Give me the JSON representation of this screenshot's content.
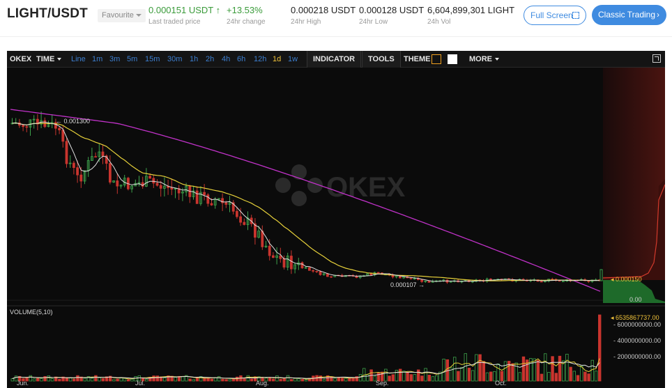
{
  "header": {
    "pair": "LIGHT/USDT",
    "favourite_label": "Favourite",
    "last_price": "0.000151 USDT",
    "last_price_arrow": "↑",
    "last_price_label": "Last traded price",
    "change": "+13.53%",
    "change_label": "24hr change",
    "high": "0.000218 USDT",
    "high_label": "24hr High",
    "low": "0.000128 USDT",
    "low_label": "24hr Low",
    "vol": "6,604,899,301 LIGHT",
    "vol_label": "24h Vol",
    "full_screen_label": "Full Screen",
    "classic_label": "Classic Trading",
    "classic_icon": "chevron-right-icon",
    "full_screen_icon": "expand-dashed-icon"
  },
  "toolbar": {
    "brand": "OKEX",
    "time_label": "TIME",
    "intervals": [
      "Line",
      "1m",
      "3m",
      "5m",
      "15m",
      "30m",
      "1h",
      "2h",
      "4h",
      "6h",
      "12h",
      "1d",
      "1w"
    ],
    "active_interval": "1d",
    "indicator_label": "INDICATOR",
    "tools_label": "TOOLS",
    "theme_label": "THEME",
    "more_label": "MORE",
    "theme_swatches": [
      "#111111",
      "#ffffff"
    ],
    "expand_icon": "expand-icon"
  },
  "chart_data": {
    "type": "candlestick",
    "watermark": "OKEX",
    "x_ticks": [
      "Jun.",
      "Jul.",
      "Aug.",
      "Sep.",
      "Oct."
    ],
    "price_annotations": {
      "high_marker": "0.001300",
      "low_marker": "0.000107",
      "current_price": "0.000150",
      "depth_zero": "0.00"
    },
    "price_range": [
      0,
      0.0016
    ],
    "volume_panel": {
      "label": "VOLUME(5,10)",
      "ticks": [
        "6000000000.00",
        "4000000000.00",
        "2000000000.00"
      ],
      "current": "6535867737.00"
    },
    "series_colors": {
      "up": "#3ea34c",
      "down": "#c9352e",
      "ma_short": "#e0e0e0",
      "ma_mid": "#e6d03a",
      "ma_long": "#c132c9"
    }
  }
}
